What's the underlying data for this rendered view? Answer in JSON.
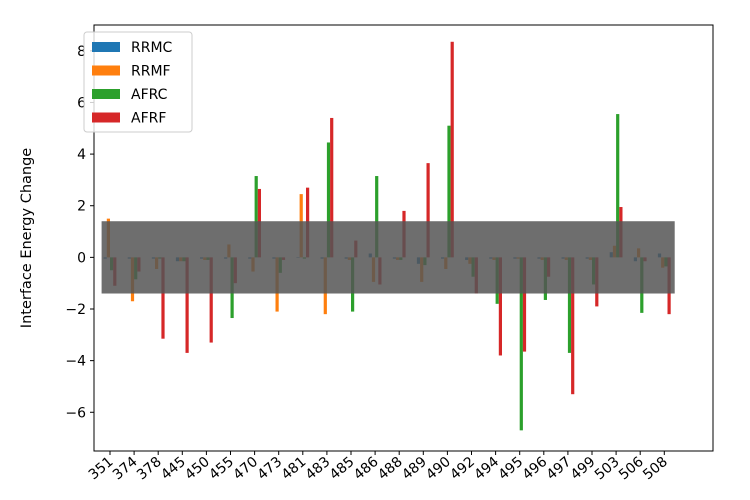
{
  "chart_data": {
    "type": "bar",
    "ylabel": "Interface Energy Change",
    "xlabel": "",
    "ylim": [
      -7.5,
      9.0
    ],
    "yticks": [
      -6,
      -4,
      -2,
      0,
      2,
      4,
      6,
      8
    ],
    "ytick_labels": [
      "−6",
      "−4",
      "−2",
      "0",
      "2",
      "4",
      "6",
      "8"
    ],
    "categories": [
      "351",
      "374",
      "378",
      "445",
      "450",
      "455",
      "470",
      "473",
      "481",
      "483",
      "485",
      "486",
      "488",
      "489",
      "490",
      "492",
      "494",
      "495",
      "496",
      "497",
      "499",
      "503",
      "506",
      "508"
    ],
    "series": [
      {
        "name": "RRMC",
        "color": "#1f77b4",
        "values": [
          -0.05,
          -0.05,
          -0.05,
          -0.15,
          -0.05,
          -0.05,
          -0.05,
          -0.05,
          0.0,
          -0.05,
          -0.05,
          0.15,
          -0.05,
          -0.25,
          -0.05,
          -0.1,
          -0.05,
          -0.05,
          -0.05,
          -0.05,
          -0.05,
          0.2,
          -0.15,
          0.15
        ]
      },
      {
        "name": "RRMF",
        "color": "#ff7f0e",
        "values": [
          1.5,
          -1.7,
          -0.45,
          -0.15,
          -0.1,
          0.5,
          -0.55,
          -2.1,
          2.45,
          -2.2,
          -0.1,
          -0.95,
          -0.1,
          -0.95,
          -0.45,
          -0.25,
          -0.1,
          -0.05,
          -0.1,
          -0.1,
          -0.1,
          0.45,
          0.35,
          -0.4
        ]
      },
      {
        "name": "AFRC",
        "color": "#2ca02c",
        "values": [
          -0.5,
          -0.85,
          -0.05,
          -0.15,
          -0.1,
          -2.35,
          3.15,
          -0.6,
          -0.05,
          4.45,
          -2.1,
          3.15,
          -0.1,
          -0.3,
          5.1,
          -0.75,
          -1.8,
          -6.7,
          -1.65,
          -3.7,
          -1.05,
          5.55,
          -2.15,
          -0.35
        ]
      },
      {
        "name": "AFRF",
        "color": "#d62728",
        "values": [
          -1.1,
          -0.55,
          -3.15,
          -3.7,
          -3.3,
          -1.0,
          2.65,
          -0.1,
          2.7,
          5.4,
          0.65,
          -1.05,
          1.8,
          3.65,
          8.35,
          -1.4,
          -3.8,
          -3.65,
          -0.75,
          -5.3,
          -1.9,
          1.95,
          -0.15,
          -2.2
        ]
      }
    ],
    "band": {
      "y_low": -1.4,
      "y_high": 1.4,
      "color": "#555555"
    },
    "legend_position": "upper-left",
    "grid": false
  }
}
